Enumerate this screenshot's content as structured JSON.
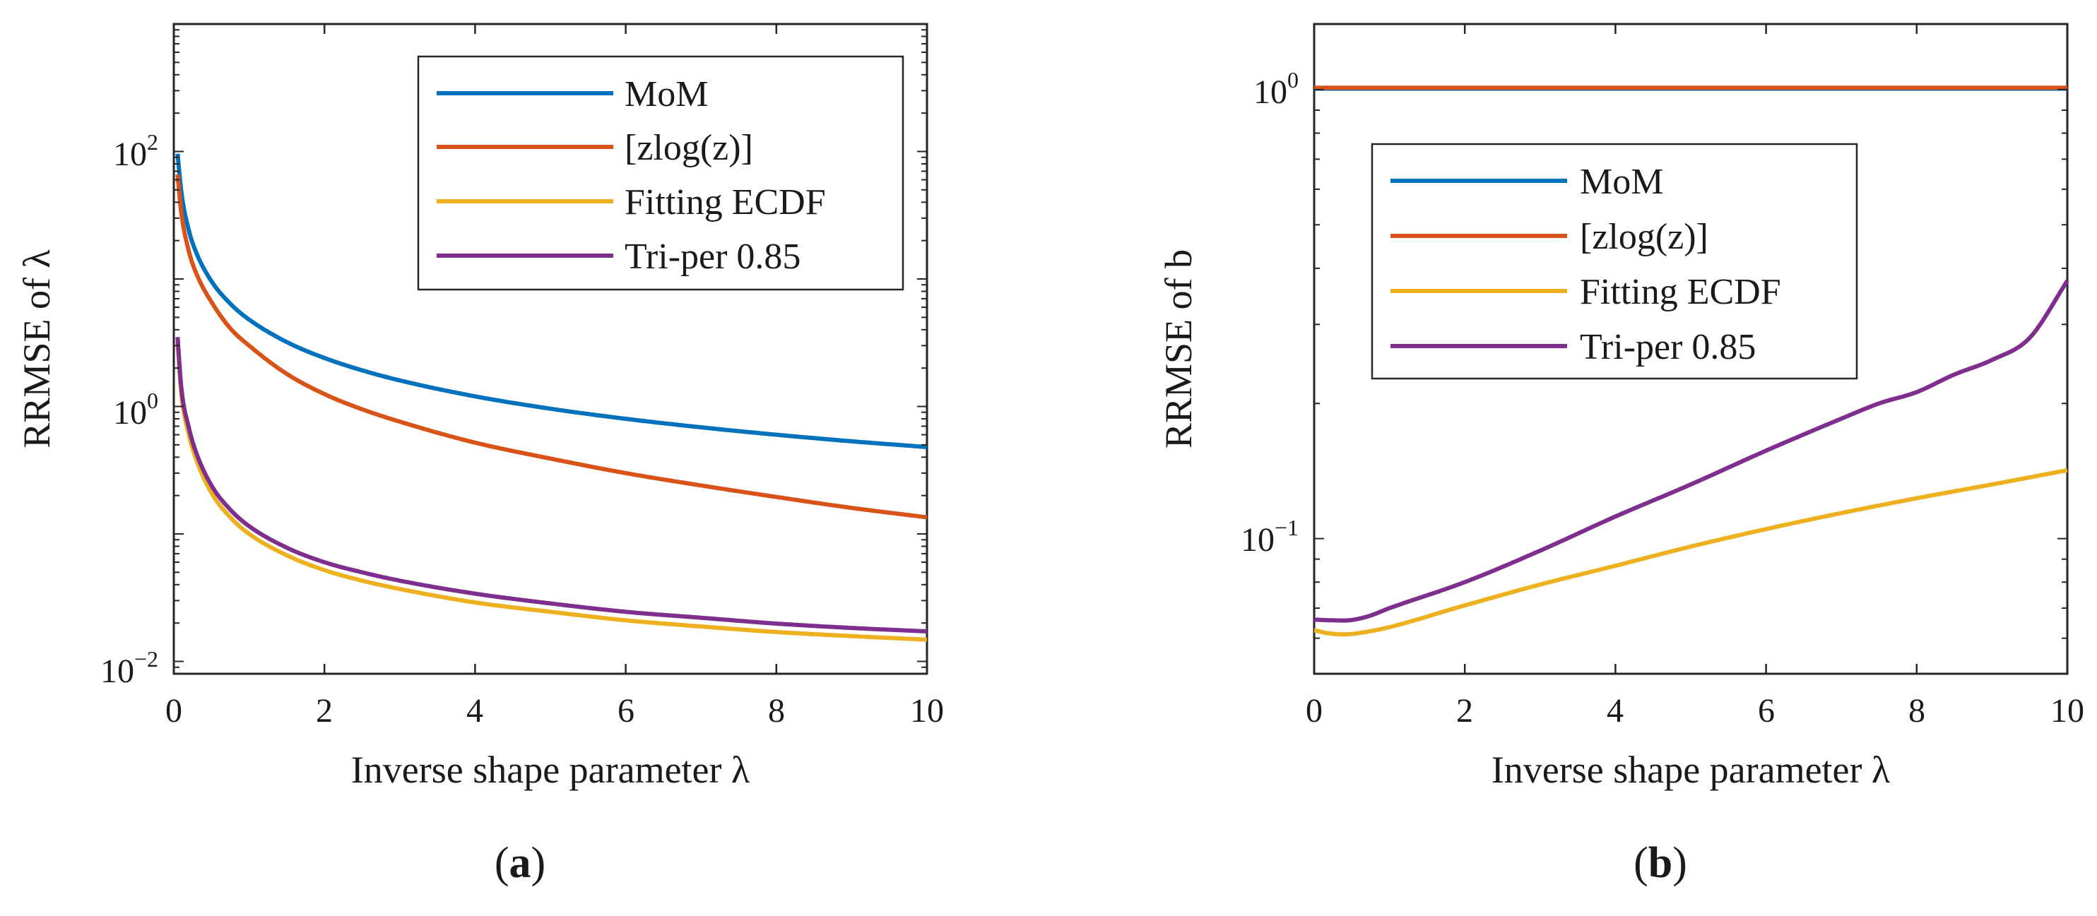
{
  "chart_data": [
    {
      "type": "line",
      "panel_label_open": "(",
      "panel_label_letter": "a",
      "panel_label_close": ")",
      "xlabel": "Inverse shape parameter λ",
      "ylabel": "RRMSE of λ",
      "xscale": "linear",
      "yscale": "log",
      "xlim": [
        0,
        10
      ],
      "ylim": [
        0.008,
        1000
      ],
      "xticks": [
        0,
        2,
        4,
        6,
        8,
        10
      ],
      "xtick_labels": [
        "0",
        "2",
        "4",
        "6",
        "8",
        "10"
      ],
      "yticks": [
        0.01,
        1,
        100
      ],
      "ytick_labels": [
        {
          "base": "10",
          "exp": "−2"
        },
        {
          "base": "10",
          "exp": "0"
        },
        {
          "base": "10",
          "exp": "2"
        }
      ],
      "grid": false,
      "legend_position": "top-right",
      "series": [
        {
          "name": "MoM",
          "color": "#0072BD",
          "x": [
            0.05,
            0.1,
            0.2,
            0.3,
            0.5,
            0.75,
            1,
            1.5,
            2,
            2.5,
            3,
            4,
            5,
            6,
            7,
            8,
            9,
            10
          ],
          "y": [
            96,
            48,
            24,
            16,
            9.6,
            6.4,
            4.8,
            3.2,
            2.4,
            1.92,
            1.6,
            1.2,
            0.96,
            0.8,
            0.686,
            0.6,
            0.533,
            0.48
          ]
        },
        {
          "name": "[zlog(z)]",
          "color": "#D95319",
          "x": [
            0.05,
            0.1,
            0.2,
            0.3,
            0.5,
            0.75,
            1,
            1.5,
            2,
            2.5,
            3,
            4,
            5,
            6,
            7,
            8,
            9,
            10
          ],
          "y": [
            66,
            33,
            16.5,
            11,
            6.6,
            4.1,
            3.0,
            1.8,
            1.25,
            0.95,
            0.76,
            0.52,
            0.39,
            0.3,
            0.24,
            0.195,
            0.16,
            0.135
          ]
        },
        {
          "name": "Fitting ECDF",
          "color": "#EDB120",
          "x": [
            0.05,
            0.1,
            0.2,
            0.3,
            0.5,
            0.75,
            1,
            1.5,
            2,
            2.5,
            3,
            4,
            5,
            6,
            7,
            8,
            9,
            10
          ],
          "y": [
            3.2,
            1.25,
            0.6,
            0.38,
            0.21,
            0.135,
            0.1,
            0.068,
            0.052,
            0.043,
            0.037,
            0.029,
            0.0245,
            0.021,
            0.0188,
            0.017,
            0.0158,
            0.0148
          ]
        },
        {
          "name": "Tri-per 0.85",
          "color": "#7E2F8E",
          "x": [
            0.05,
            0.1,
            0.2,
            0.3,
            0.5,
            0.75,
            1,
            1.5,
            2,
            2.5,
            3,
            4,
            5,
            6,
            7,
            8,
            9,
            10
          ],
          "y": [
            3.5,
            1.4,
            0.68,
            0.43,
            0.24,
            0.155,
            0.115,
            0.078,
            0.06,
            0.05,
            0.043,
            0.034,
            0.0285,
            0.0245,
            0.022,
            0.0198,
            0.0183,
            0.0172
          ]
        }
      ]
    },
    {
      "type": "line",
      "panel_label_open": "(",
      "panel_label_letter": "b",
      "panel_label_close": ")",
      "xlabel": "Inverse shape parameter λ",
      "ylabel": "RRMSE of b",
      "xscale": "linear",
      "yscale": "log",
      "xlim": [
        0,
        10
      ],
      "ylim": [
        0.05,
        1.4
      ],
      "xticks": [
        0,
        2,
        4,
        6,
        8,
        10
      ],
      "xtick_labels": [
        "0",
        "2",
        "4",
        "6",
        "8",
        "10"
      ],
      "yticks": [
        0.1,
        1
      ],
      "ytick_labels": [
        {
          "base": "10",
          "exp": "−1"
        },
        {
          "base": "10",
          "exp": "0"
        }
      ],
      "grid": false,
      "legend_position": "upper-center",
      "series": [
        {
          "name": "MoM",
          "color": "#0072BD",
          "x": [
            0,
            2,
            4,
            6,
            8,
            10
          ],
          "y": [
            1.005,
            1.005,
            1.005,
            1.005,
            1.005,
            1.005
          ]
        },
        {
          "name": "[zlog(z)]",
          "color": "#D95319",
          "x": [
            0,
            2,
            4,
            6,
            8,
            10
          ],
          "y": [
            1.01,
            1.01,
            1.01,
            1.01,
            1.01,
            1.01
          ]
        },
        {
          "name": "Fitting ECDF",
          "color": "#EDB120",
          "x": [
            0,
            0.2,
            0.4,
            0.7,
            1,
            2,
            3,
            4,
            5,
            6,
            7,
            8,
            9,
            10
          ],
          "y": [
            0.0625,
            0.0615,
            0.0612,
            0.062,
            0.0635,
            0.071,
            0.079,
            0.087,
            0.096,
            0.105,
            0.114,
            0.123,
            0.132,
            0.142
          ]
        },
        {
          "name": "Tri-per 0.85",
          "color": "#7E2F8E",
          "x": [
            0,
            0.2,
            0.4,
            0.7,
            1,
            2,
            3,
            4,
            5,
            6,
            7,
            7.5,
            8,
            8.5,
            9,
            9.5,
            10
          ],
          "y": [
            0.066,
            0.0658,
            0.0657,
            0.067,
            0.07,
            0.08,
            0.094,
            0.112,
            0.132,
            0.157,
            0.185,
            0.2,
            0.212,
            0.232,
            0.25,
            0.28,
            0.375
          ]
        }
      ]
    }
  ]
}
